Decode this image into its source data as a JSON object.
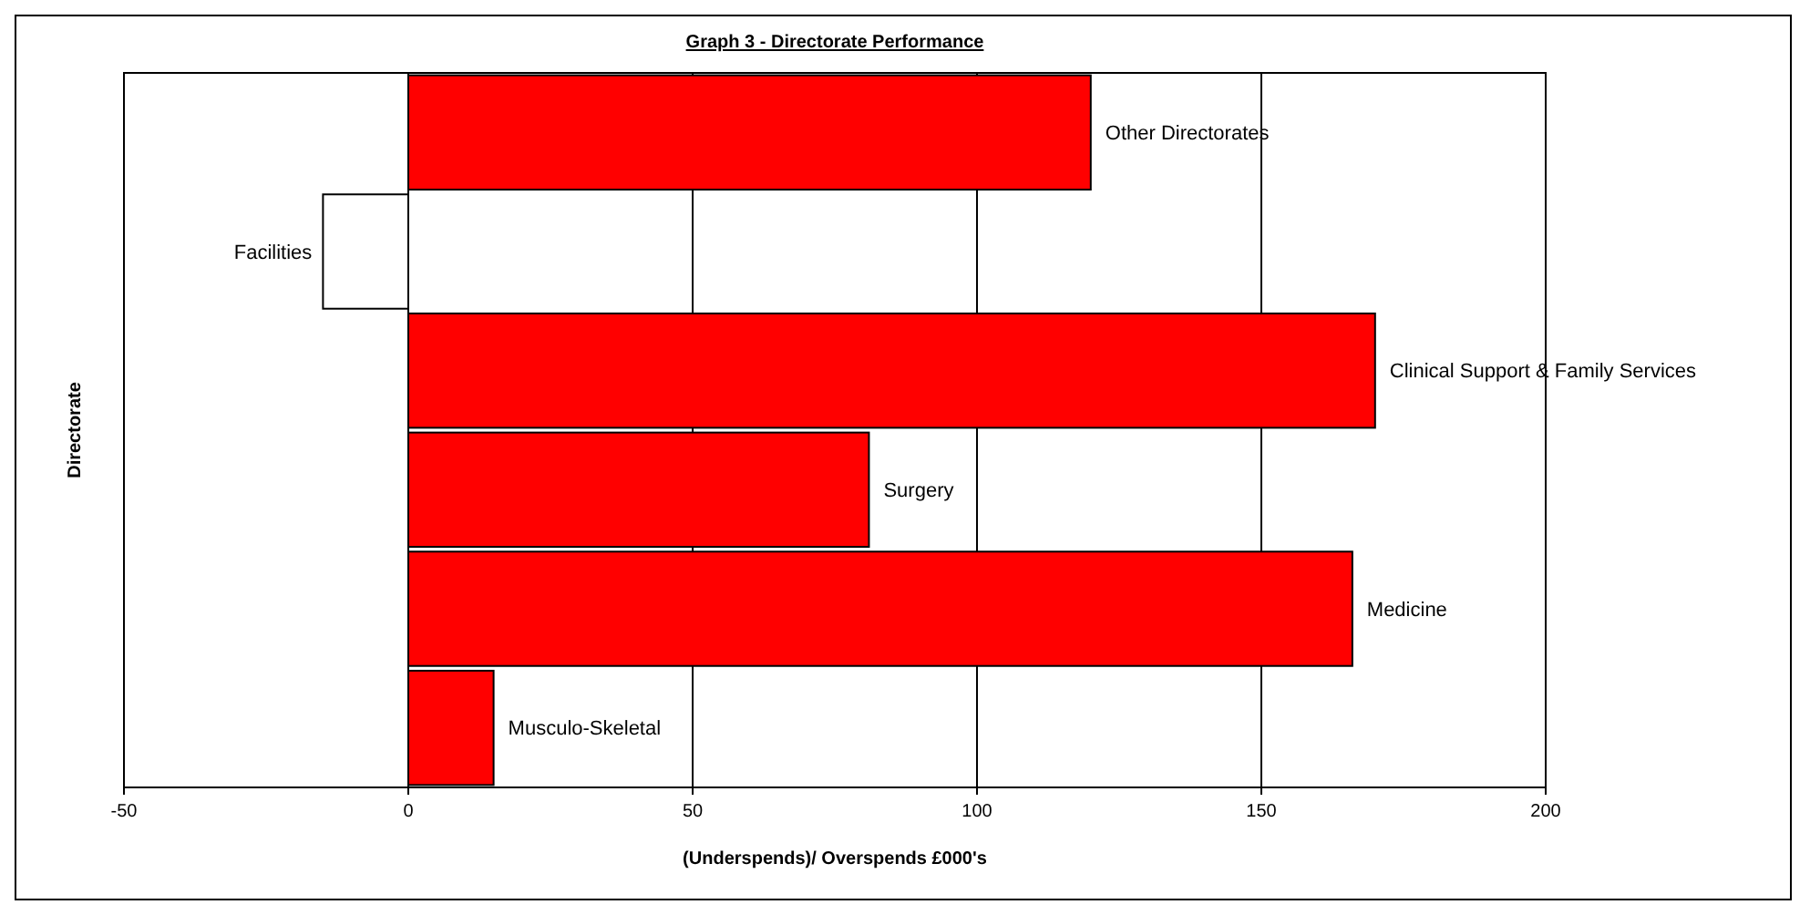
{
  "chart_data": {
    "type": "bar",
    "orientation": "horizontal",
    "title": "Graph 3 - Directorate Performance",
    "xlabel": "(Underspends)/ Overspends £000's",
    "ylabel": "Directorate",
    "categories": [
      "Other Directorates",
      "Facilities",
      "Clinical Support & Family Services",
      "Surgery",
      "Medicine",
      "Musculo-Skeletal"
    ],
    "values": [
      120,
      -15,
      170,
      81,
      166,
      15
    ],
    "colors": [
      "#ff0000",
      "#ffffff",
      "#ff0000",
      "#ff0000",
      "#ff0000",
      "#ff0000"
    ],
    "xlim": [
      -50,
      200
    ],
    "xticks": [
      -50,
      0,
      50,
      100,
      150,
      200
    ],
    "grid": "x"
  }
}
